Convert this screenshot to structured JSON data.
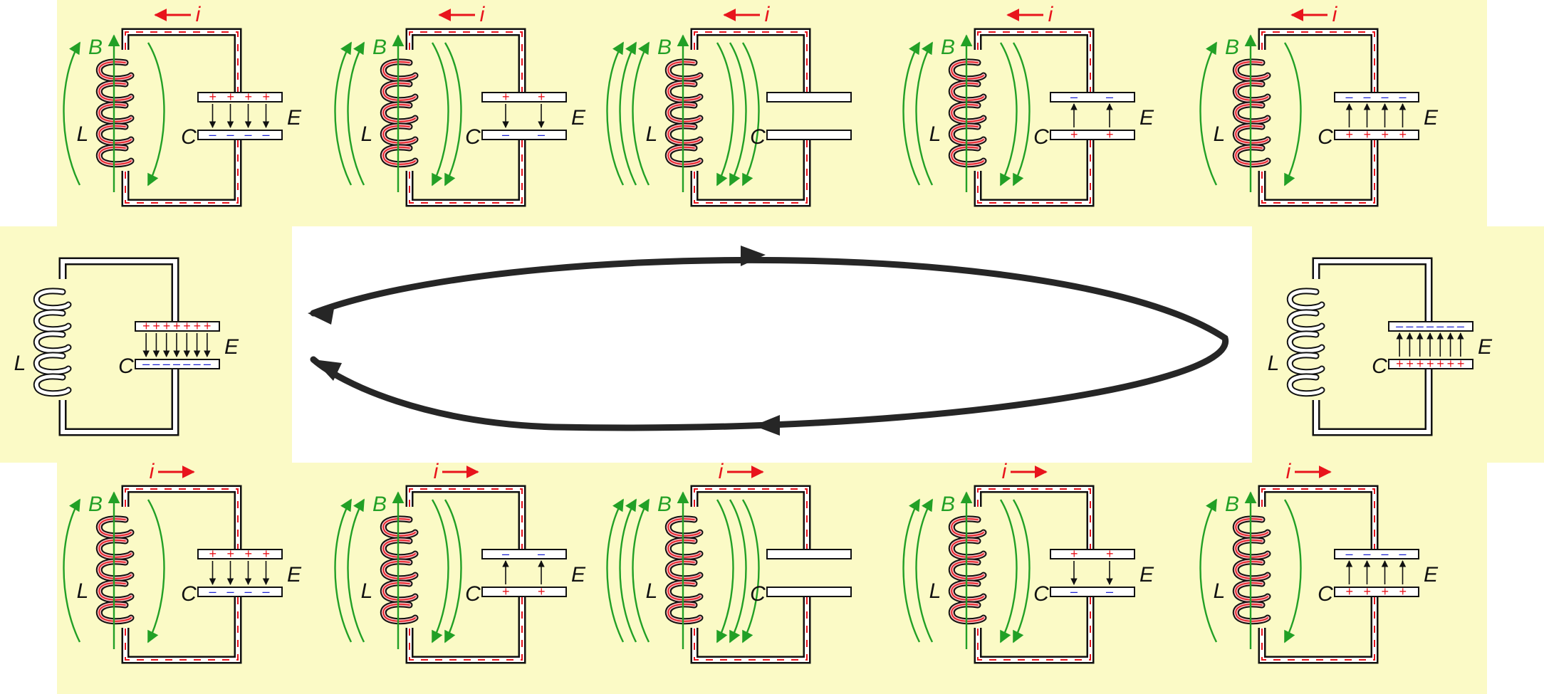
{
  "labels": {
    "current": "i",
    "magnetic_field": "B",
    "inductor": "L",
    "capacitor": "C",
    "electric_field": "E"
  },
  "colors": {
    "panel": "#fbfac6",
    "wire_outline": "#111111",
    "current": "#e8141c",
    "field_b": "#22a026",
    "positive": "#e8141c",
    "negative": "#1a22d0",
    "cycle_arrow": "#262626",
    "field_e": "#111111"
  },
  "cycle": {
    "direction": "clockwise",
    "description_states": 12
  },
  "top_row": [
    {
      "stage": 1,
      "charge_top": "+",
      "charge_bottom": "-",
      "charge_marks": 4,
      "b_field": "weak",
      "current_direction": "left"
    },
    {
      "stage": 2,
      "charge_top": "+",
      "charge_bottom": "-",
      "charge_marks": 2,
      "b_field": "medium",
      "current_direction": "left"
    },
    {
      "stage": 3,
      "charge_top": "",
      "charge_bottom": "",
      "charge_marks": 0,
      "b_field": "strong",
      "current_direction": "left"
    },
    {
      "stage": 4,
      "charge_top": "-",
      "charge_bottom": "+",
      "charge_marks": 2,
      "b_field": "medium",
      "current_direction": "left"
    },
    {
      "stage": 5,
      "charge_top": "-",
      "charge_bottom": "+",
      "charge_marks": 4,
      "b_field": "weak",
      "current_direction": "left"
    }
  ],
  "bottom_row": [
    {
      "stage": 1,
      "charge_top": "+",
      "charge_bottom": "-",
      "charge_marks": 4,
      "b_field": "weak",
      "current_direction": "right"
    },
    {
      "stage": 2,
      "charge_top": "-",
      "charge_bottom": "+",
      "charge_marks": 2,
      "b_field": "medium",
      "current_direction": "right"
    },
    {
      "stage": 3,
      "charge_top": "",
      "charge_bottom": "",
      "charge_marks": 0,
      "b_field": "strong",
      "current_direction": "right"
    },
    {
      "stage": 4,
      "charge_top": "+",
      "charge_bottom": "-",
      "charge_marks": 2,
      "b_field": "medium",
      "current_direction": "right"
    },
    {
      "stage": 5,
      "charge_top": "-",
      "charge_bottom": "+",
      "charge_marks": 4,
      "b_field": "weak",
      "current_direction": "right"
    }
  ],
  "side_states": [
    {
      "side": "left",
      "charge_top": "+",
      "charge_bottom": "-",
      "charge_marks": 7,
      "b_field": "none",
      "current_direction": "none"
    },
    {
      "side": "right",
      "charge_top": "-",
      "charge_bottom": "+",
      "charge_marks": 7,
      "b_field": "none",
      "current_direction": "none"
    }
  ]
}
